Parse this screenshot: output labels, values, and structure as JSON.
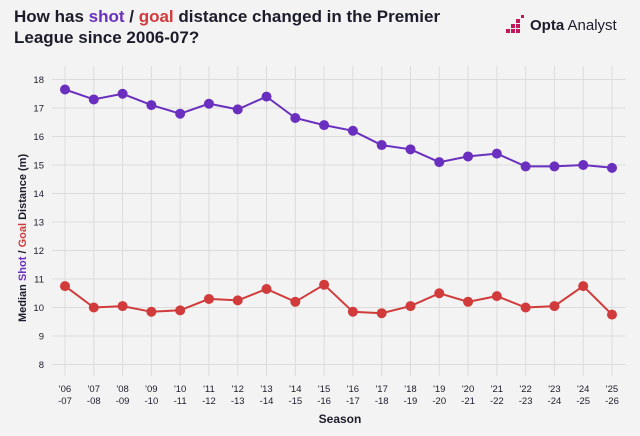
{
  "header": {
    "title_part1": "How has ",
    "title_shot": "shot",
    "title_sep": " / ",
    "title_goal": "goal",
    "title_part2": " distance changed in the Premier League since 2006-07?"
  },
  "logo": {
    "brand_bold": "Opta",
    "brand_light": " Analyst",
    "icon": "opta-stairs-icon"
  },
  "colors": {
    "shot": "#6a2fbf",
    "goal": "#d13b3b",
    "background": "#f3f3f3",
    "grid": "#dcdcdc",
    "text": "#1c1c2b"
  },
  "chart_data": {
    "type": "line",
    "title": "How has shot / goal distance changed in the Premier League since 2006-07?",
    "xlabel": "Season",
    "ylabel": {
      "prefix": "Median ",
      "shot": "Shot",
      "sep": " / ",
      "goal": "Goal",
      "suffix": " Distance (m)"
    },
    "categories": [
      [
        "'06",
        "-07"
      ],
      [
        "'07",
        "-08"
      ],
      [
        "'08",
        "-09"
      ],
      [
        "'09",
        "-10"
      ],
      [
        "'10",
        "-11"
      ],
      [
        "'11",
        "-12"
      ],
      [
        "'12",
        "-13"
      ],
      [
        "'13",
        "-14"
      ],
      [
        "'14",
        "-15"
      ],
      [
        "'15",
        "-16"
      ],
      [
        "'16",
        "-17"
      ],
      [
        "'17",
        "-18"
      ],
      [
        "'18",
        "-19"
      ],
      [
        "'19",
        "-20"
      ],
      [
        "'20",
        "-21"
      ],
      [
        "'21",
        "-22"
      ],
      [
        "'22",
        "-23"
      ],
      [
        "'23",
        "-24"
      ],
      [
        "'24",
        "-25"
      ],
      [
        "'25",
        "-26"
      ]
    ],
    "ylim": [
      7.6,
      18.3
    ],
    "yticks": [
      8,
      9,
      10,
      11,
      12,
      13,
      14,
      15,
      16,
      17,
      18
    ],
    "grid": true,
    "series": [
      {
        "name": "Shot",
        "values": [
          17.65,
          17.3,
          17.5,
          17.1,
          16.8,
          17.15,
          16.95,
          17.4,
          16.65,
          16.4,
          16.2,
          15.7,
          15.55,
          15.1,
          15.3,
          15.4,
          14.95,
          14.95,
          15.0,
          14.9
        ]
      },
      {
        "name": "Goal",
        "values": [
          10.75,
          10.0,
          10.05,
          9.85,
          9.9,
          10.3,
          10.25,
          10.65,
          10.2,
          10.8,
          9.85,
          9.8,
          10.05,
          10.5,
          10.2,
          10.4,
          10.0,
          10.05,
          10.75,
          9.75
        ]
      }
    ]
  }
}
